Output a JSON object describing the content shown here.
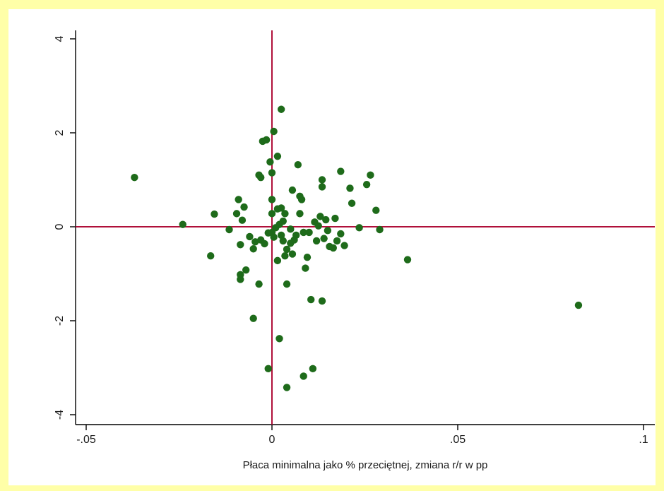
{
  "chart_data": {
    "type": "scatter",
    "title": "",
    "xlabel": "Płaca minimalna jako % przeciętnej, zmiana r/r w pp",
    "ylabel": "",
    "xlim": [
      -0.052,
      0.1
    ],
    "ylim": [
      -4.1,
      4.1
    ],
    "x_ticks": [
      -0.05,
      0,
      0.05,
      0.1
    ],
    "x_tick_labels": [
      "-.05",
      "0",
      ".05",
      ".1"
    ],
    "y_ticks": [
      -4,
      -2,
      0,
      2,
      4
    ],
    "y_tick_labels": [
      "-4",
      "-2",
      "0",
      "2",
      "4"
    ],
    "grid": false,
    "reference_lines": {
      "x": 0,
      "y": 0,
      "color": "#b0103a"
    },
    "marker_color": "#1e6b1a",
    "points": [
      [
        -0.037,
        1.05
      ],
      [
        -0.024,
        0.05
      ],
      [
        -0.0165,
        -0.62
      ],
      [
        -0.0155,
        0.27
      ],
      [
        -0.0115,
        -0.06
      ],
      [
        -0.009,
        0.58
      ],
      [
        -0.0095,
        0.28
      ],
      [
        -0.008,
        0.14
      ],
      [
        -0.0085,
        -0.38
      ],
      [
        -0.0075,
        0.42
      ],
      [
        -0.006,
        -0.21
      ],
      [
        -0.0045,
        -0.32
      ],
      [
        -0.005,
        -0.47
      ],
      [
        -0.003,
        -0.28
      ],
      [
        -0.002,
        -0.36
      ],
      [
        -0.001,
        -0.13
      ],
      [
        -0.0085,
        -1.02
      ],
      [
        -0.0085,
        -1.12
      ],
      [
        -0.007,
        -0.92
      ],
      [
        -0.0035,
        -1.22
      ],
      [
        -0.005,
        -1.95
      ],
      [
        -0.0035,
        1.1
      ],
      [
        -0.003,
        1.05
      ],
      [
        -0.0025,
        1.82
      ],
      [
        -0.0015,
        1.85
      ],
      [
        -0.0005,
        1.38
      ],
      [
        0.0,
        1.15
      ],
      [
        0.0005,
        2.03
      ],
      [
        0.0015,
        1.5
      ],
      [
        0.0025,
        2.5
      ],
      [
        -0.001,
        -3.02
      ],
      [
        0.0015,
        -0.72
      ],
      [
        0.002,
        -2.38
      ],
      [
        0.004,
        -3.42
      ],
      [
        0.0035,
        -0.62
      ],
      [
        0.004,
        -1.22
      ],
      [
        0.0,
        0.58
      ],
      [
        0.0,
        0.28
      ],
      [
        0.0015,
        0.38
      ],
      [
        0.0025,
        0.4
      ],
      [
        0.0035,
        0.28
      ],
      [
        0.003,
        0.12
      ],
      [
        0.002,
        0.05
      ],
      [
        0.001,
        -0.02
      ],
      [
        0.0,
        -0.12
      ],
      [
        0.0005,
        -0.22
      ],
      [
        0.0025,
        -0.18
      ],
      [
        0.003,
        -0.3
      ],
      [
        0.004,
        -0.48
      ],
      [
        0.005,
        -0.35
      ],
      [
        0.0055,
        -0.58
      ],
      [
        0.006,
        -0.28
      ],
      [
        0.005,
        -0.05
      ],
      [
        0.0055,
        0.78
      ],
      [
        0.007,
        1.32
      ],
      [
        0.0075,
        0.65
      ],
      [
        0.008,
        0.58
      ],
      [
        0.0075,
        0.28
      ],
      [
        0.0065,
        -0.18
      ],
      [
        0.0085,
        -0.12
      ],
      [
        0.009,
        -0.88
      ],
      [
        0.0095,
        -0.65
      ],
      [
        0.01,
        -0.12
      ],
      [
        0.0105,
        -1.55
      ],
      [
        0.011,
        -3.02
      ],
      [
        0.0085,
        -3.18
      ],
      [
        0.0115,
        0.1
      ],
      [
        0.0125,
        0.02
      ],
      [
        0.012,
        -0.3
      ],
      [
        0.013,
        0.22
      ],
      [
        0.0135,
        0.85
      ],
      [
        0.0135,
        1.0
      ],
      [
        0.014,
        -0.25
      ],
      [
        0.0145,
        0.15
      ],
      [
        0.015,
        -0.08
      ],
      [
        0.0155,
        -0.42
      ],
      [
        0.0165,
        -0.45
      ],
      [
        0.017,
        0.18
      ],
      [
        0.0175,
        -0.3
      ],
      [
        0.0185,
        -0.15
      ],
      [
        0.0185,
        1.18
      ],
      [
        0.0195,
        -0.4
      ],
      [
        0.021,
        0.82
      ],
      [
        0.0215,
        0.5
      ],
      [
        0.0235,
        -0.02
      ],
      [
        0.0255,
        0.9
      ],
      [
        0.0265,
        1.1
      ],
      [
        0.028,
        0.35
      ],
      [
        0.029,
        -0.06
      ],
      [
        0.0135,
        -1.58
      ],
      [
        0.0365,
        -0.7
      ],
      [
        0.0825,
        -1.67
      ]
    ]
  }
}
